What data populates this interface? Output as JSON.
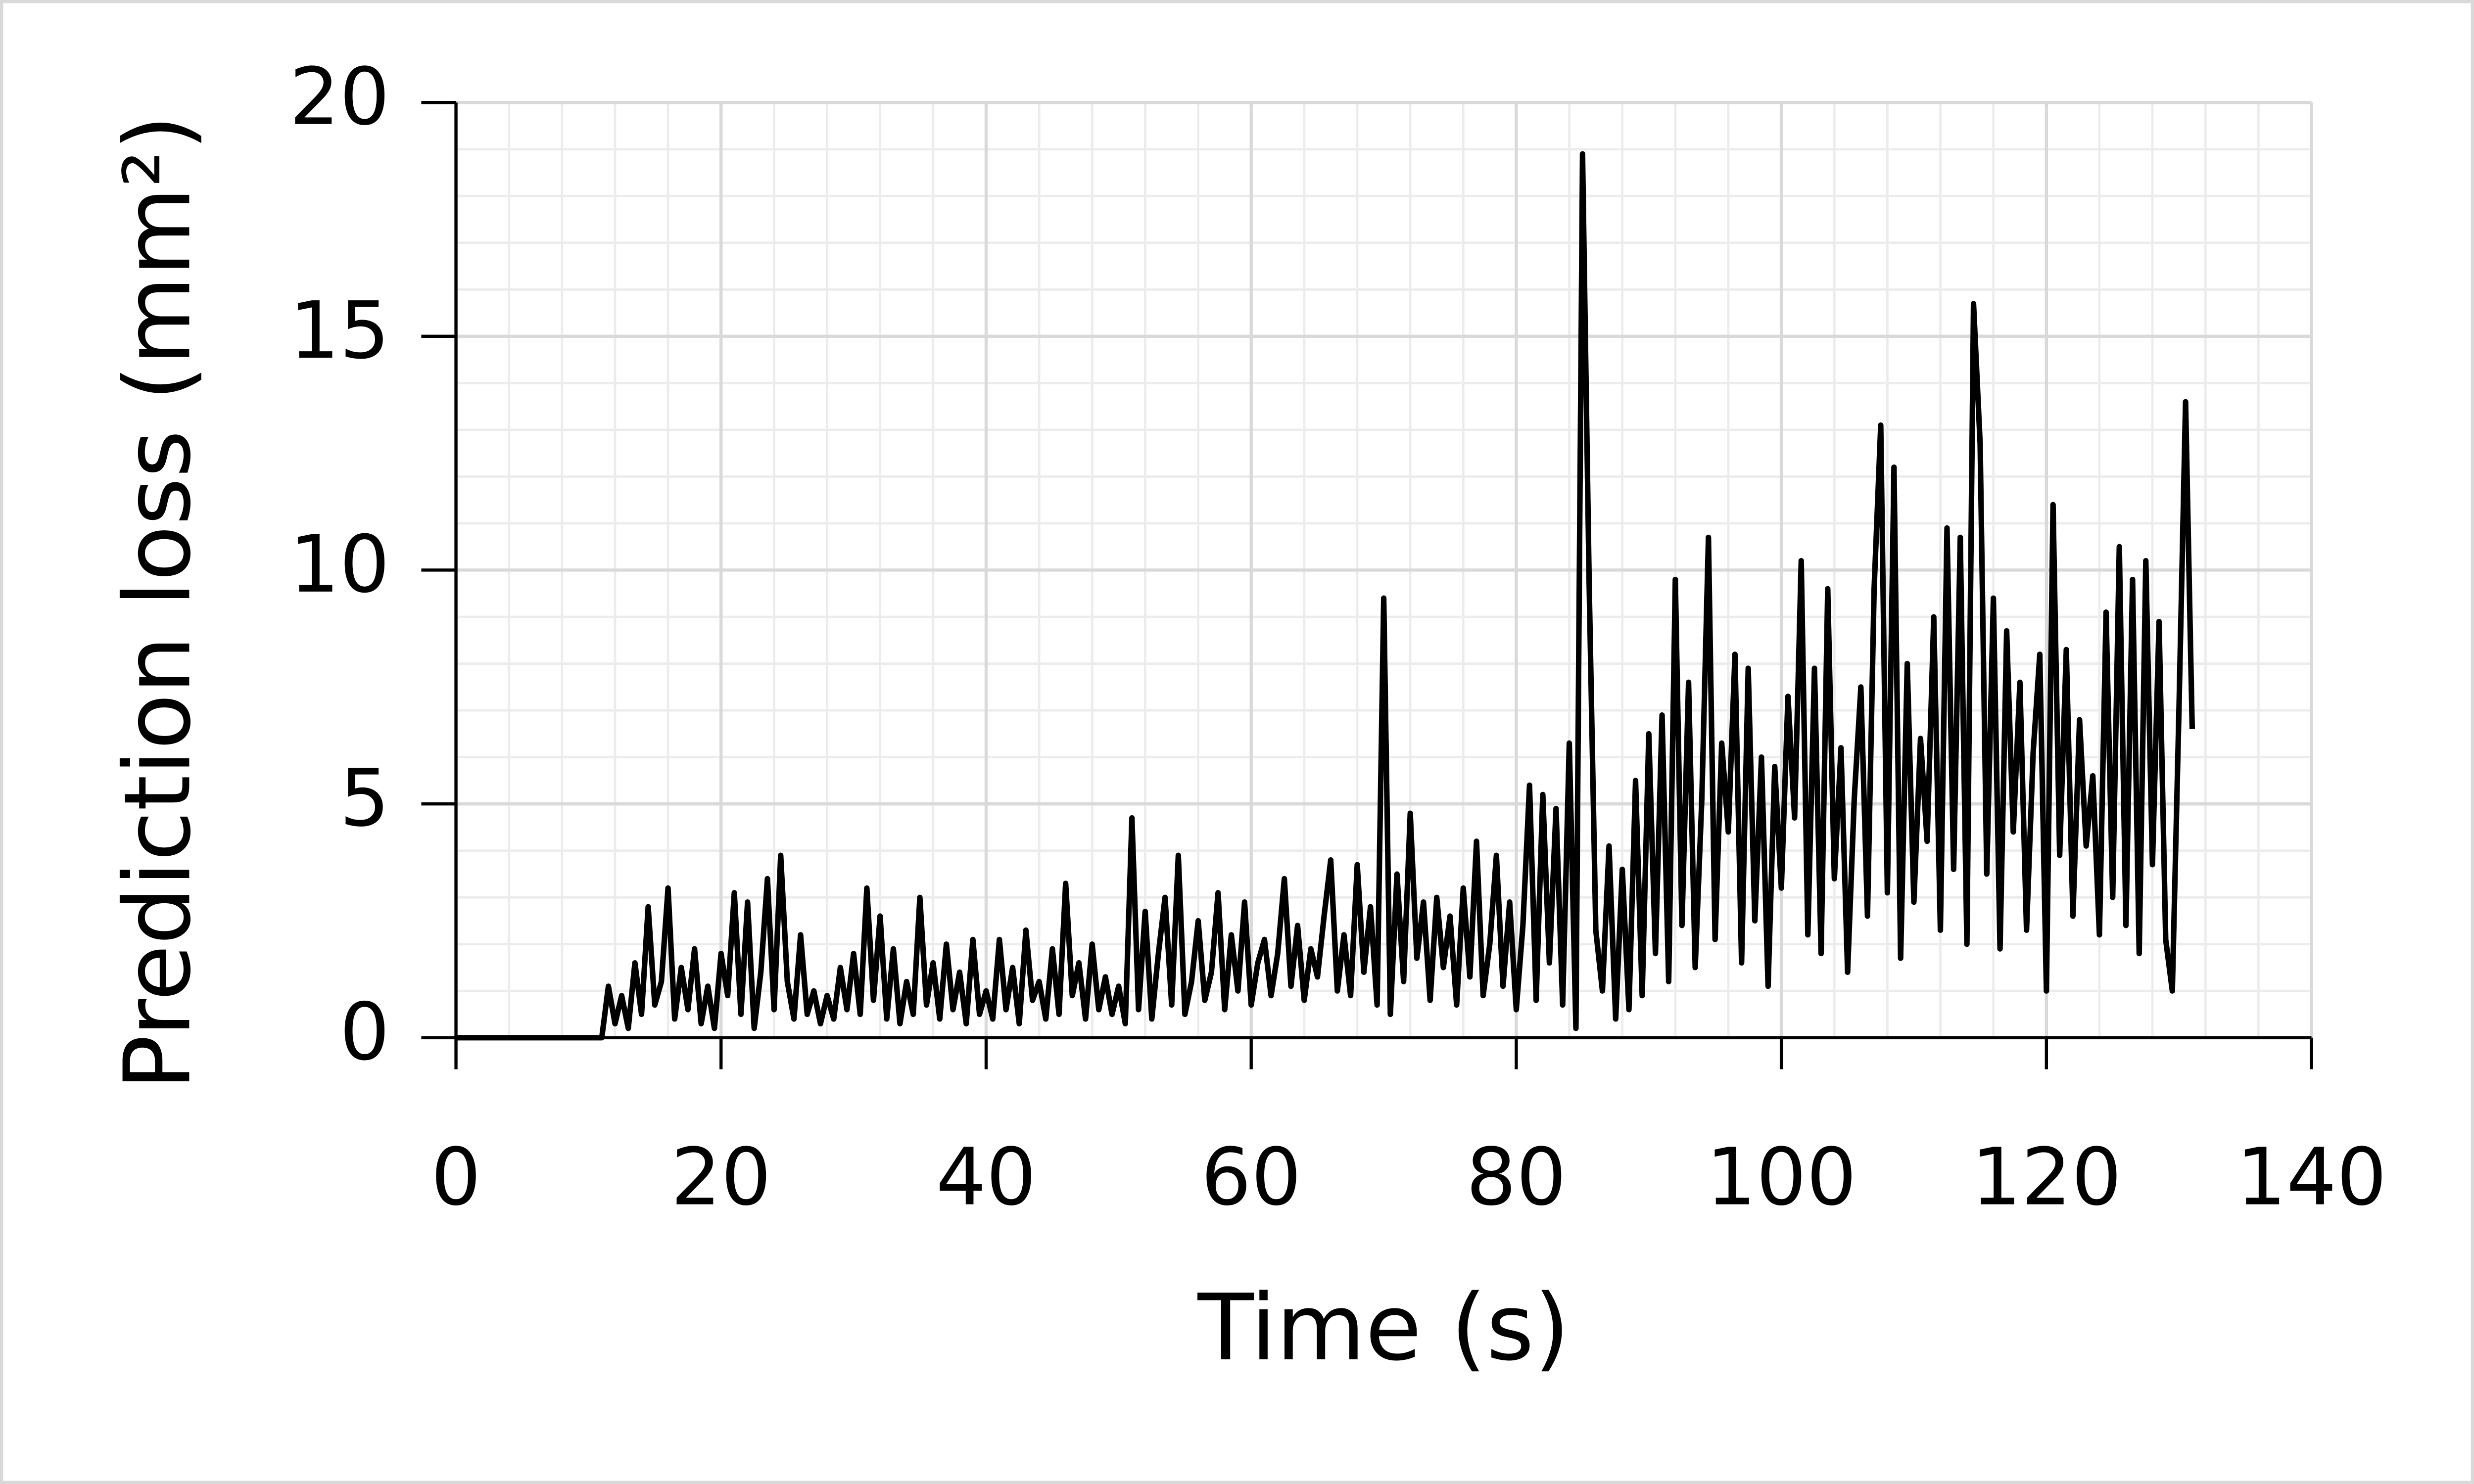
{
  "chart_data": {
    "type": "line",
    "xlabel": "Time (s)",
    "ylabel": "Prediction loss (mm²)",
    "color": "#000000",
    "grid": true,
    "xlim": [
      0,
      140
    ],
    "ylim": [
      0,
      20
    ],
    "xticks": [
      0,
      20,
      40,
      60,
      80,
      100,
      120,
      140
    ],
    "yticks": [
      0,
      5,
      10,
      15,
      20
    ],
    "xminorticks": [
      4,
      8,
      12,
      16,
      24,
      28,
      32,
      36,
      44,
      48,
      52,
      56,
      64,
      68,
      72,
      76,
      84,
      88,
      92,
      96,
      104,
      108,
      112,
      116,
      124,
      128,
      132,
      136
    ],
    "yminorticks": [
      1,
      2,
      3,
      4,
      6,
      7,
      8,
      9,
      11,
      12,
      13,
      14,
      16,
      17,
      18,
      19
    ],
    "x": [
      0,
      11,
      11.5,
      12,
      12.5,
      13,
      13.5,
      14,
      14.5,
      15,
      15.5,
      16,
      16.5,
      17,
      17.5,
      18,
      18.5,
      19,
      19.5,
      20,
      20.5,
      21,
      21.5,
      22,
      22.5,
      23,
      23.5,
      24,
      24.5,
      25,
      25.5,
      26,
      26.5,
      27,
      27.5,
      28,
      28.5,
      29,
      29.5,
      30,
      30.5,
      31,
      31.5,
      32,
      32.5,
      33,
      33.5,
      34,
      34.5,
      35,
      35.5,
      36,
      36.5,
      37,
      37.5,
      38,
      38.5,
      39,
      39.5,
      40,
      40.5,
      41,
      41.5,
      42,
      42.5,
      43,
      43.5,
      44,
      44.5,
      45,
      45.5,
      46,
      46.5,
      47,
      47.5,
      48,
      48.5,
      49,
      49.5,
      50,
      50.5,
      51,
      51.5,
      52,
      52.5,
      53,
      53.5,
      54,
      54.5,
      55,
      55.5,
      56,
      56.5,
      57,
      57.5,
      58,
      58.5,
      59,
      59.5,
      60,
      60.5,
      61,
      61.5,
      62,
      62.5,
      63,
      63.5,
      64,
      64.5,
      65,
      65.5,
      66,
      66.5,
      67,
      67.5,
      68,
      68.5,
      69,
      69.5,
      70,
      70.5,
      71,
      71.5,
      72,
      72.5,
      73,
      73.5,
      74,
      74.5,
      75,
      75.5,
      76,
      76.5,
      77,
      77.5,
      78,
      78.5,
      79,
      79.5,
      80,
      80.5,
      81,
      81.5,
      82,
      82.5,
      83,
      83.5,
      84,
      84.5,
      85,
      85.5,
      86,
      86.5,
      87,
      87.5,
      88,
      88.5,
      89,
      89.5,
      90,
      90.5,
      91,
      91.5,
      92,
      92.5,
      93,
      93.5,
      94,
      94.5,
      95,
      95.5,
      96,
      96.5,
      97,
      97.5,
      98,
      98.5,
      99,
      99.5,
      100,
      100.5,
      101,
      101.5,
      102,
      102.5,
      103,
      103.5,
      104,
      104.5,
      105,
      105.5,
      106,
      106.5,
      107,
      107.5,
      108,
      108.5,
      109,
      109.5,
      110,
      110.5,
      111,
      111.5,
      112,
      112.5,
      113,
      113.5,
      114,
      114.5,
      115,
      115.5,
      116,
      116.5,
      117,
      117.5,
      118,
      118.5,
      119,
      119.5,
      120,
      120.5,
      121,
      121.5,
      122,
      122.5,
      123,
      123.5,
      124,
      124.5,
      125,
      125.5,
      126,
      126.5,
      127,
      127.5,
      128,
      128.5,
      129,
      129.5,
      130,
      130.5,
      131
    ],
    "values": [
      0,
      0,
      1.1,
      0.3,
      0.9,
      0.2,
      1.6,
      0.5,
      2.8,
      0.7,
      1.2,
      3.2,
      0.4,
      1.5,
      0.6,
      1.9,
      0.3,
      1.1,
      0.2,
      1.8,
      0.9,
      3.1,
      0.5,
      2.9,
      0.2,
      1.4,
      3.4,
      0.6,
      3.9,
      1.2,
      0.4,
      2.2,
      0.5,
      1.0,
      0.3,
      0.9,
      0.4,
      1.5,
      0.6,
      1.8,
      0.5,
      3.2,
      0.8,
      2.6,
      0.4,
      1.9,
      0.3,
      1.2,
      0.5,
      3.0,
      0.7,
      1.6,
      0.4,
      2.0,
      0.6,
      1.4,
      0.3,
      2.1,
      0.5,
      1.0,
      0.4,
      2.1,
      0.6,
      1.5,
      0.3,
      2.3,
      0.8,
      1.2,
      0.4,
      1.9,
      0.5,
      3.3,
      0.9,
      1.6,
      0.4,
      2.0,
      0.6,
      1.3,
      0.5,
      1.1,
      0.3,
      4.7,
      0.6,
      2.7,
      0.4,
      1.8,
      3.0,
      0.7,
      3.9,
      0.5,
      1.2,
      2.5,
      0.8,
      1.4,
      3.1,
      0.6,
      2.2,
      1.0,
      2.9,
      0.7,
      1.6,
      2.1,
      0.9,
      1.8,
      3.4,
      1.1,
      2.4,
      0.8,
      1.9,
      1.3,
      2.6,
      3.8,
      1.0,
      2.2,
      0.9,
      3.7,
      1.4,
      2.8,
      0.7,
      9.4,
      0.5,
      3.5,
      1.2,
      4.8,
      1.7,
      2.9,
      0.8,
      3.0,
      1.5,
      2.6,
      0.7,
      3.2,
      1.3,
      4.2,
      0.9,
      2.0,
      3.9,
      1.1,
      2.9,
      0.6,
      2.4,
      5.4,
      0.8,
      5.2,
      1.6,
      4.9,
      0.7,
      6.3,
      0.2,
      18.9,
      9.7,
      2.3,
      1.0,
      4.1,
      0.4,
      3.6,
      0.6,
      5.5,
      0.9,
      6.5,
      1.8,
      6.9,
      1.2,
      9.8,
      2.4,
      7.6,
      1.5,
      5.1,
      10.7,
      2.1,
      6.3,
      4.4,
      8.2,
      1.6,
      7.9,
      2.5,
      6.0,
      1.1,
      5.8,
      3.2,
      7.3,
      4.7,
      10.2,
      2.2,
      7.9,
      1.8,
      9.6,
      3.4,
      6.2,
      1.4,
      5.1,
      7.5,
      2.6,
      9.6,
      13.1,
      3.1,
      12.2,
      1.7,
      8.0,
      2.9,
      6.4,
      4.2,
      9.0,
      2.3,
      10.9,
      3.6,
      10.7,
      2.0,
      15.7,
      12.7,
      3.5,
      9.4,
      1.9,
      8.7,
      4.4,
      7.6,
      2.3,
      6.1,
      8.2,
      1.0,
      11.4,
      3.9,
      8.3,
      2.6,
      6.8,
      4.1,
      5.6,
      2.2,
      9.1,
      3.0,
      10.5,
      2.4,
      9.8,
      1.8,
      10.2,
      3.7,
      8.9,
      2.1,
      1.0,
      7.0,
      13.6,
      6.6
    ]
  }
}
